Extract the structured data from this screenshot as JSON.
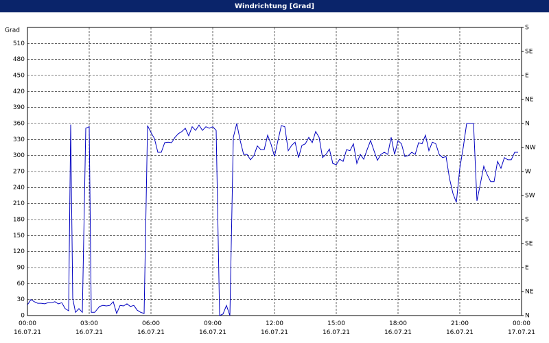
{
  "chart_data": {
    "type": "line",
    "title": "Windrichtung [Grad]",
    "y_label": "Grad",
    "color": "#0000c0",
    "grid": true,
    "x": [
      0,
      10,
      20,
      30,
      40,
      50,
      60,
      70,
      80,
      90,
      100,
      110,
      120,
      126,
      132,
      140,
      150,
      160,
      170,
      180,
      186,
      196,
      210,
      220,
      230,
      240,
      250,
      260,
      270,
      280,
      290,
      300,
      310,
      320,
      330,
      340,
      350,
      360,
      370,
      380,
      390,
      400,
      410,
      420,
      430,
      440,
      450,
      460,
      470,
      480,
      490,
      500,
      510,
      520,
      530,
      540,
      550,
      560,
      570,
      580,
      590,
      600,
      610,
      620,
      630,
      640,
      650,
      660,
      670,
      680,
      690,
      700,
      710,
      720,
      730,
      740,
      750,
      760,
      770,
      780,
      790,
      800,
      810,
      820,
      830,
      840,
      850,
      860,
      870,
      880,
      890,
      900,
      910,
      920,
      930,
      940,
      950,
      960,
      970,
      980,
      990,
      1000,
      1010,
      1020,
      1030,
      1040,
      1050,
      1060,
      1070,
      1080,
      1090,
      1100,
      1110,
      1120,
      1130,
      1140,
      1150,
      1160,
      1170,
      1180,
      1190,
      1200,
      1210,
      1220,
      1230,
      1240,
      1250,
      1260,
      1270,
      1280,
      1290,
      1300,
      1310,
      1320,
      1330,
      1340,
      1350,
      1360,
      1370,
      1380,
      1390,
      1400,
      1410,
      1420,
      1430
    ],
    "values": [
      20,
      30,
      26,
      23,
      23,
      22,
      24,
      24,
      26,
      22,
      24,
      13,
      9,
      358,
      32,
      6,
      13,
      6,
      351,
      354,
      6,
      6,
      17,
      19,
      18,
      19,
      26,
      4,
      19,
      18,
      22,
      17,
      19,
      10,
      6,
      4,
      356,
      343,
      332,
      306,
      306,
      324,
      325,
      324,
      334,
      341,
      345,
      351,
      337,
      354,
      347,
      357,
      347,
      354,
      351,
      354,
      347,
      0,
      3,
      19,
      0,
      334,
      360,
      328,
      302,
      302,
      292,
      300,
      318,
      311,
      311,
      338,
      321,
      298,
      328,
      356,
      354,
      309,
      319,
      325,
      296,
      319,
      322,
      334,
      324,
      345,
      334,
      296,
      302,
      312,
      285,
      283,
      293,
      289,
      311,
      309,
      322,
      285,
      302,
      293,
      311,
      328,
      309,
      291,
      302,
      306,
      302,
      334,
      302,
      328,
      322,
      298,
      300,
      306,
      302,
      324,
      322,
      338,
      309,
      325,
      322,
      302,
      296,
      298,
      257,
      229,
      212,
      276,
      315,
      360,
      360,
      360,
      215,
      247,
      280,
      264,
      251,
      251,
      289,
      276,
      296,
      292,
      292,
      306,
      306
    ],
    "xlim": [
      0,
      1440
    ],
    "xticks": [
      {
        "value": 0,
        "label": "00:00\n16.07.21"
      },
      {
        "value": 180,
        "label": "03:00\n16.07.21"
      },
      {
        "value": 360,
        "label": "06:00\n16.07.21"
      },
      {
        "value": 540,
        "label": "09:00\n16.07.21"
      },
      {
        "value": 720,
        "label": "12:00\n16.07.21"
      },
      {
        "value": 900,
        "label": "15:00\n16.07.21"
      },
      {
        "value": 1080,
        "label": "18:00\n16.07.21"
      },
      {
        "value": 1260,
        "label": "21:00\n16.07.21"
      },
      {
        "value": 1440,
        "label": "00:00\n17.07.21"
      }
    ],
    "ylim": [
      0,
      540
    ],
    "yticks": [
      0,
      30,
      60,
      90,
      120,
      150,
      180,
      210,
      240,
      270,
      300,
      330,
      360,
      390,
      420,
      450,
      480,
      510
    ],
    "y2lim": [
      0,
      540
    ],
    "y2ticks": [
      {
        "value": 0,
        "label": "N"
      },
      {
        "value": 45,
        "label": "NE"
      },
      {
        "value": 90,
        "label": "E"
      },
      {
        "value": 135,
        "label": "SE"
      },
      {
        "value": 180,
        "label": "S"
      },
      {
        "value": 225,
        "label": "SW"
      },
      {
        "value": 270,
        "label": "W"
      },
      {
        "value": 315,
        "label": "NW"
      },
      {
        "value": 360,
        "label": "N"
      },
      {
        "value": 405,
        "label": "NE"
      },
      {
        "value": 450,
        "label": "E"
      },
      {
        "value": 495,
        "label": "SE"
      },
      {
        "value": 540,
        "label": "S"
      }
    ]
  }
}
